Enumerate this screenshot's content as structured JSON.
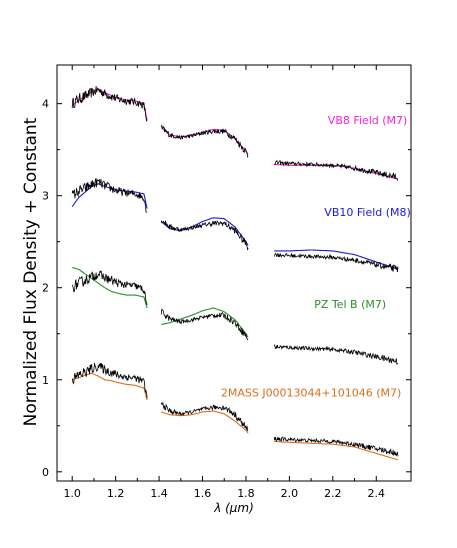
{
  "chart_data": {
    "type": "line",
    "title": "",
    "xlabel": "λ (μm)",
    "ylabel": "Normalized Flux Density + Constant",
    "xlim": [
      0.93,
      2.56
    ],
    "ylim": [
      -0.1,
      4.42
    ],
    "xticks": [
      "1.0",
      "1.2",
      "1.4",
      "1.6",
      "1.8",
      "2.0",
      "2.2",
      "2.4"
    ],
    "yticks": [
      "0",
      "1",
      "2",
      "3",
      "4"
    ],
    "grid": false,
    "legend": "labels placed beside each comparison spectrum",
    "reference_color": "#000000",
    "bands": [
      [
        1.0,
        1.345
      ],
      [
        1.41,
        1.81
      ],
      [
        1.93,
        2.5
      ]
    ],
    "series": [
      {
        "name": "VB8 Field (M7)",
        "color": "#ee22dd",
        "offset": 3.0,
        "label_pos": [
          2.36,
          3.78
        ],
        "x": [
          1.0,
          1.03,
          1.06,
          1.09,
          1.12,
          1.15,
          1.18,
          1.21,
          1.25,
          1.29,
          1.33,
          1.345,
          1.41,
          1.45,
          1.5,
          1.55,
          1.6,
          1.65,
          1.7,
          1.75,
          1.8,
          1.81,
          1.93,
          2.0,
          2.1,
          2.2,
          2.3,
          2.4,
          2.5
        ],
        "y": [
          0.98,
          1.04,
          1.08,
          1.13,
          1.16,
          1.12,
          1.09,
          1.06,
          1.04,
          1.03,
          1.0,
          0.82,
          0.74,
          0.66,
          0.64,
          0.66,
          0.69,
          0.72,
          0.71,
          0.62,
          0.48,
          0.45,
          0.34,
          0.33,
          0.33,
          0.33,
          0.3,
          0.24,
          0.18
        ]
      },
      {
        "name": "VB10 Field (M8)",
        "color": "#1a1adc",
        "offset": 2.0,
        "label_pos": [
          2.36,
          2.78
        ],
        "x": [
          1.0,
          1.03,
          1.06,
          1.09,
          1.12,
          1.15,
          1.18,
          1.21,
          1.25,
          1.29,
          1.33,
          1.345,
          1.41,
          1.45,
          1.5,
          1.55,
          1.6,
          1.65,
          1.7,
          1.75,
          1.8,
          1.81,
          1.93,
          2.0,
          2.1,
          2.2,
          2.3,
          2.4,
          2.5
        ],
        "y": [
          0.88,
          0.98,
          1.04,
          1.1,
          1.13,
          1.1,
          1.08,
          1.06,
          1.05,
          1.04,
          1.02,
          0.86,
          0.72,
          0.64,
          0.62,
          0.66,
          0.72,
          0.76,
          0.75,
          0.66,
          0.5,
          0.46,
          0.4,
          0.4,
          0.41,
          0.4,
          0.36,
          0.28,
          0.2
        ]
      },
      {
        "name": "PZ Tel B (M7)",
        "color": "#2a8f2a",
        "offset": 1.0,
        "label_pos": [
          2.28,
          1.78
        ],
        "x": [
          1.0,
          1.03,
          1.06,
          1.09,
          1.12,
          1.15,
          1.18,
          1.21,
          1.25,
          1.29,
          1.33,
          1.345,
          1.41,
          1.45,
          1.5,
          1.55,
          1.6,
          1.65,
          1.7,
          1.75,
          1.8,
          1.81
        ],
        "y": [
          1.22,
          1.2,
          1.15,
          1.1,
          1.05,
          1.0,
          0.96,
          0.94,
          0.92,
          0.92,
          0.9,
          0.78,
          0.6,
          0.62,
          0.66,
          0.7,
          0.75,
          0.78,
          0.74,
          0.65,
          0.5,
          0.46
        ]
      },
      {
        "name": "2MASS J00013044+101046 (M7)",
        "color": "#d96e1f",
        "offset": 0.0,
        "label_pos": [
          2.1,
          0.82
        ],
        "x": [
          1.0,
          1.03,
          1.06,
          1.09,
          1.12,
          1.15,
          1.18,
          1.21,
          1.25,
          1.29,
          1.33,
          1.345,
          1.41,
          1.45,
          1.5,
          1.55,
          1.6,
          1.65,
          1.7,
          1.75,
          1.8,
          1.81,
          1.93,
          2.0,
          2.1,
          2.2,
          2.3,
          2.4,
          2.5
        ],
        "y": [
          1.0,
          1.02,
          1.05,
          1.07,
          1.04,
          1.0,
          0.99,
          0.97,
          0.95,
          0.94,
          0.91,
          0.78,
          0.65,
          0.62,
          0.61,
          0.62,
          0.65,
          0.66,
          0.63,
          0.55,
          0.45,
          0.42,
          0.33,
          0.32,
          0.31,
          0.3,
          0.27,
          0.2,
          0.13
        ]
      }
    ],
    "reference": {
      "x": [
        1.0,
        1.03,
        1.06,
        1.09,
        1.12,
        1.15,
        1.18,
        1.21,
        1.25,
        1.29,
        1.33,
        1.345,
        1.41,
        1.45,
        1.5,
        1.55,
        1.6,
        1.65,
        1.7,
        1.75,
        1.8,
        1.81,
        1.93,
        2.0,
        2.1,
        2.2,
        2.3,
        2.4,
        2.5
      ],
      "y": [
        1.0,
        1.05,
        1.08,
        1.12,
        1.15,
        1.11,
        1.08,
        1.05,
        1.03,
        1.02,
        0.98,
        0.8,
        0.74,
        0.66,
        0.63,
        0.65,
        0.68,
        0.7,
        0.7,
        0.62,
        0.48,
        0.44,
        0.36,
        0.35,
        0.34,
        0.33,
        0.3,
        0.25,
        0.2
      ],
      "noise": [
        0.06,
        0.06,
        0.06,
        0.055,
        0.05,
        0.05,
        0.05,
        0.045,
        0.04,
        0.04,
        0.04,
        0.04,
        0.035,
        0.03,
        0.02,
        0.02,
        0.02,
        0.025,
        0.03,
        0.035,
        0.04,
        0.05,
        0.025,
        0.02,
        0.02,
        0.02,
        0.025,
        0.03,
        0.04
      ]
    }
  }
}
